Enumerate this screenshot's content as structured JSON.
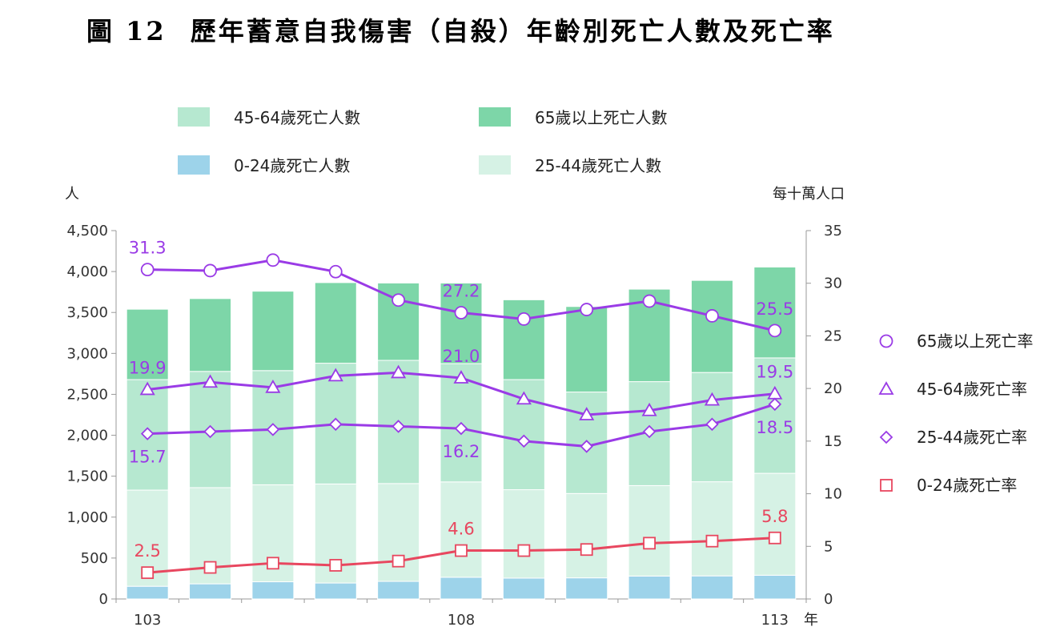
{
  "title": {
    "figure": "圖 12",
    "text": "歷年蓄意自我傷害（自殺）年齡別死亡人數及死亡率"
  },
  "chart_data": {
    "type": "bar+line",
    "stacked_bars": true,
    "left_axis": {
      "unit": "人",
      "ylim": [
        0,
        4500
      ],
      "ticks": [
        "0",
        "500",
        "1,000",
        "1,500",
        "2,000",
        "2,500",
        "3,000",
        "3,500",
        "4,000",
        "4,500"
      ]
    },
    "right_axis": {
      "unit": "每十萬人口",
      "ylim": [
        0,
        35
      ],
      "ticks": [
        "0",
        "5",
        "10",
        "15",
        "20",
        "25",
        "30",
        "35"
      ]
    },
    "x_unit": "年",
    "categories": [
      "103",
      "104",
      "105",
      "106",
      "107",
      "108",
      "109",
      "110",
      "111",
      "112",
      "113"
    ],
    "x_tick_labels": [
      "103",
      "108",
      "113"
    ],
    "bar_series": [
      {
        "name": "0-24歲死亡人數",
        "color": "#9dd3ea",
        "values": [
          155,
          185,
          210,
          195,
          215,
          265,
          255,
          258,
          280,
          282,
          290
        ]
      },
      {
        "name": "25-44歲死亡人數",
        "color": "#d6f2e5",
        "values": [
          1175,
          1175,
          1185,
          1210,
          1195,
          1165,
          1080,
          1030,
          1105,
          1150,
          1245
        ]
      },
      {
        "name": "45-64歲死亡人數",
        "color": "#b6e8d0",
        "values": [
          1350,
          1420,
          1395,
          1475,
          1505,
          1445,
          1345,
          1240,
          1270,
          1335,
          1410
        ]
      },
      {
        "name": "65歲以上死亡人數",
        "color": "#7dd6a8",
        "values": [
          860,
          890,
          970,
          985,
          945,
          985,
          975,
          1045,
          1130,
          1125,
          1110
        ]
      }
    ],
    "line_series": [
      {
        "name": "65歲以上死亡率",
        "color": "#9a3be6",
        "marker": "circle",
        "values": [
          31.3,
          31.2,
          32.2,
          31.1,
          28.4,
          27.2,
          26.6,
          27.5,
          28.3,
          26.9,
          25.5
        ]
      },
      {
        "name": "45-64歲死亡率",
        "color": "#9a3be6",
        "marker": "triangle",
        "values": [
          19.9,
          20.6,
          20.1,
          21.2,
          21.5,
          21.0,
          19.0,
          17.5,
          17.9,
          18.9,
          19.5
        ]
      },
      {
        "name": "25-44歲死亡率",
        "color": "#9a3be6",
        "marker": "diamond",
        "values": [
          15.7,
          15.9,
          16.1,
          16.6,
          16.4,
          16.2,
          15.0,
          14.5,
          15.9,
          16.6,
          18.5
        ]
      },
      {
        "name": "0-24歲死亡率",
        "color": "#e8475f",
        "marker": "square",
        "values": [
          2.5,
          3.0,
          3.4,
          3.2,
          3.6,
          4.6,
          4.6,
          4.7,
          5.3,
          5.5,
          5.8
        ]
      }
    ],
    "data_labels": [
      {
        "series": 0,
        "index": 0,
        "text": "31.3",
        "pos": "above"
      },
      {
        "series": 0,
        "index": 5,
        "text": "27.2",
        "pos": "above"
      },
      {
        "series": 0,
        "index": 10,
        "text": "25.5",
        "pos": "above"
      },
      {
        "series": 1,
        "index": 0,
        "text": "19.9",
        "pos": "above"
      },
      {
        "series": 1,
        "index": 5,
        "text": "21.0",
        "pos": "above"
      },
      {
        "series": 1,
        "index": 10,
        "text": "19.5",
        "pos": "above"
      },
      {
        "series": 2,
        "index": 0,
        "text": "15.7",
        "pos": "below"
      },
      {
        "series": 2,
        "index": 5,
        "text": "16.2",
        "pos": "below"
      },
      {
        "series": 2,
        "index": 10,
        "text": "18.5",
        "pos": "below"
      },
      {
        "series": 3,
        "index": 0,
        "text": "2.5",
        "pos": "above"
      },
      {
        "series": 3,
        "index": 5,
        "text": "4.6",
        "pos": "above"
      },
      {
        "series": 3,
        "index": 10,
        "text": "5.8",
        "pos": "above"
      }
    ],
    "bar_legend": [
      "45-64歲死亡人數",
      "65歲以上死亡人數",
      "0-24歲死亡人數",
      "25-44歲死亡人數"
    ],
    "line_legend": [
      "65歲以上死亡率",
      "45-64歲死亡率",
      "25-44歲死亡率",
      "0-24歲死亡率"
    ]
  }
}
